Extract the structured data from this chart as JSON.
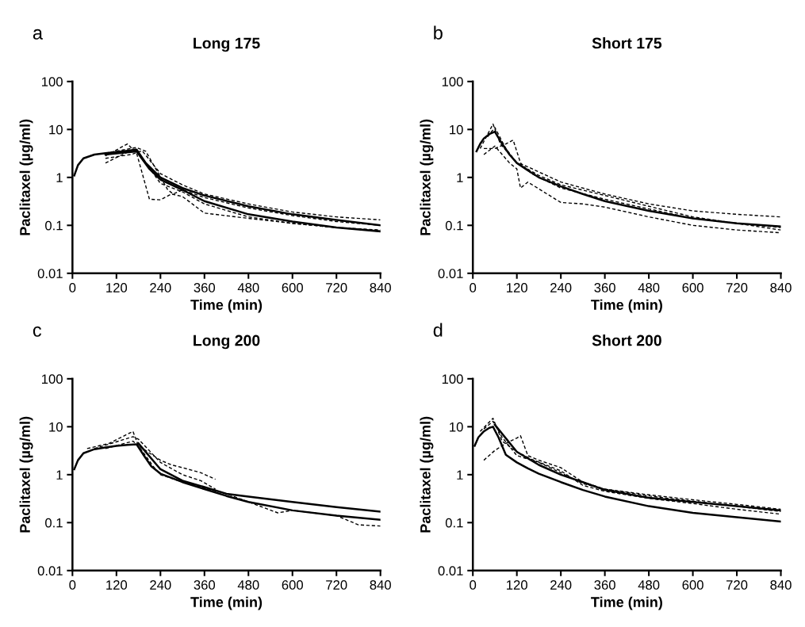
{
  "chart_data": [
    {
      "type": "line",
      "title": "Long 175",
      "xlabel": "Time (min)",
      "ylabel": "Paclitaxel (µg/ml)",
      "annotations": [
        "a"
      ],
      "log": "y",
      "xlim": [
        0,
        840
      ],
      "ylim": [
        0.01,
        100
      ],
      "xticks": [
        0,
        120,
        240,
        360,
        480,
        600,
        720,
        840
      ],
      "yticks": [
        0.01,
        0.1,
        1,
        10,
        100
      ],
      "series": [
        {
          "color": "#000000",
          "line_style": "solid",
          "x": [
            5,
            15,
            30,
            60,
            90,
            120,
            150,
            175,
            200,
            240,
            300,
            360,
            480,
            600,
            720,
            840
          ],
          "values": [
            1.1,
            1.8,
            2.5,
            3.0,
            3.2,
            3.4,
            3.6,
            3.8,
            2.0,
            1.0,
            0.6,
            0.42,
            0.25,
            0.17,
            0.13,
            0.1
          ]
        },
        {
          "color": "#000000",
          "line_style": "solid",
          "x": [
            90,
            175,
            210,
            240,
            300,
            360,
            480,
            600,
            720,
            840
          ],
          "values": [
            3.0,
            3.5,
            1.5,
            0.9,
            0.55,
            0.32,
            0.17,
            0.12,
            0.09,
            0.075
          ]
        },
        {
          "color": "#000000",
          "line_style": "dashed",
          "x": [
            90,
            150,
            175,
            210,
            240,
            270,
            300,
            360,
            480,
            600,
            720,
            840
          ],
          "values": [
            2.8,
            5.0,
            3.2,
            0.35,
            0.34,
            0.45,
            0.4,
            0.18,
            0.14,
            0.11,
            0.09,
            0.075
          ]
        },
        {
          "color": "#000000",
          "line_style": "dashed",
          "x": [
            90,
            170,
            200,
            240,
            300,
            360,
            480,
            600,
            720,
            840
          ],
          "values": [
            2.0,
            4.0,
            2.0,
            0.75,
            0.5,
            0.28,
            0.15,
            0.11,
            0.09,
            0.08
          ]
        },
        {
          "color": "#000000",
          "line_style": "dashed",
          "x": [
            90,
            160,
            190,
            240,
            300,
            360,
            480,
            600,
            720,
            840
          ],
          "values": [
            2.5,
            3.0,
            3.6,
            1.2,
            0.7,
            0.45,
            0.28,
            0.19,
            0.15,
            0.13
          ]
        },
        {
          "color": "#000000",
          "line_style": "dashed",
          "x": [
            90,
            175,
            200,
            260,
            275,
            300,
            360,
            480,
            600,
            720,
            840
          ],
          "values": [
            3.2,
            4.2,
            3.5,
            0.55,
            0.45,
            0.55,
            0.38,
            0.23,
            0.16,
            0.12,
            0.1
          ]
        }
      ]
    },
    {
      "type": "line",
      "title": "Short 175",
      "xlabel": "Time (min)",
      "ylabel": "Paclitaxel (µg/ml)",
      "annotations": [
        "b"
      ],
      "log": "y",
      "xlim": [
        0,
        840
      ],
      "ylim": [
        0.01,
        100
      ],
      "xticks": [
        0,
        120,
        240,
        360,
        480,
        600,
        720,
        840
      ],
      "yticks": [
        0.01,
        0.1,
        1,
        10,
        100
      ],
      "series": [
        {
          "color": "#000000",
          "line_style": "solid",
          "x": [
            10,
            20,
            30,
            45,
            60,
            80,
            100,
            120,
            150,
            180,
            240,
            300,
            360,
            480,
            600,
            720,
            840
          ],
          "values": [
            3.5,
            5,
            6.5,
            8,
            9,
            5,
            3,
            2.0,
            1.4,
            1.0,
            0.65,
            0.45,
            0.32,
            0.2,
            0.14,
            0.11,
            0.095
          ]
        },
        {
          "color": "#000000",
          "line_style": "dashed",
          "x": [
            30,
            60,
            100,
            120,
            130,
            150,
            240,
            300,
            360,
            480,
            600,
            720,
            840
          ],
          "values": [
            3.0,
            4.5,
            2.0,
            1.5,
            0.6,
            0.8,
            0.3,
            0.28,
            0.24,
            0.15,
            0.1,
            0.08,
            0.07
          ]
        },
        {
          "color": "#000000",
          "line_style": "dashed",
          "x": [
            20,
            55,
            75,
            100,
            120,
            140,
            240,
            360,
            480,
            600,
            720,
            840
          ],
          "values": [
            4,
            13,
            5,
            3,
            2,
            1.8,
            0.8,
            0.45,
            0.28,
            0.2,
            0.17,
            0.15
          ]
        },
        {
          "color": "#000000",
          "line_style": "dashed",
          "x": [
            30,
            60,
            90,
            110,
            130,
            160,
            240,
            360,
            480,
            600,
            720,
            840
          ],
          "values": [
            4,
            4,
            5,
            6,
            2,
            1.2,
            0.6,
            0.35,
            0.22,
            0.14,
            0.11,
            0.09
          ]
        },
        {
          "color": "#000000",
          "line_style": "dashed",
          "x": [
            40,
            60,
            90,
            120,
            180,
            240,
            360,
            480,
            600,
            720,
            840
          ],
          "values": [
            7,
            11,
            4,
            2,
            1.1,
            0.7,
            0.42,
            0.25,
            0.15,
            0.11,
            0.08
          ]
        }
      ]
    },
    {
      "type": "line",
      "title": "Long 200",
      "xlabel": "Time (min)",
      "ylabel": "Paclitaxel (µg/ml)",
      "annotations": [
        "c"
      ],
      "log": "y",
      "xlim": [
        0,
        840
      ],
      "ylim": [
        0.01,
        100
      ],
      "xticks": [
        0,
        120,
        240,
        360,
        480,
        600,
        720,
        840
      ],
      "yticks": [
        0.01,
        0.1,
        1,
        10,
        100
      ],
      "series": [
        {
          "color": "#000000",
          "line_style": "solid",
          "x": [
            5,
            15,
            30,
            60,
            90,
            120,
            150,
            175,
            195,
            215,
            240,
            300,
            360,
            420,
            480,
            600,
            720,
            840
          ],
          "values": [
            1.3,
            2.0,
            2.8,
            3.4,
            3.7,
            4.0,
            4.2,
            4.3,
            2.5,
            1.5,
            1.05,
            0.7,
            0.5,
            0.36,
            0.27,
            0.18,
            0.14,
            0.115
          ]
        },
        {
          "color": "#000000",
          "line_style": "solid",
          "x": [
            180,
            240,
            300,
            360,
            420,
            480,
            600,
            720,
            840
          ],
          "values": [
            4.5,
            1.3,
            0.75,
            0.55,
            0.4,
            0.35,
            0.27,
            0.21,
            0.17
          ]
        },
        {
          "color": "#000000",
          "line_style": "dashed",
          "x": [
            40,
            100,
            165,
            180,
            240,
            270,
            300,
            350,
            390
          ],
          "values": [
            3.5,
            4.5,
            8.0,
            4.0,
            2.0,
            1.6,
            1.4,
            1.1,
            0.8
          ]
        },
        {
          "color": "#000000",
          "line_style": "dashed",
          "x": [
            60,
            165,
            180,
            240,
            300,
            350,
            390
          ],
          "values": [
            3.5,
            6.2,
            5.5,
            1.8,
            1.0,
            0.75,
            0.5
          ]
        },
        {
          "color": "#000000",
          "line_style": "dashed",
          "x": [
            90,
            165,
            180,
            220,
            240,
            300,
            420,
            480,
            560,
            600,
            720,
            780,
            840
          ],
          "values": [
            3.5,
            5,
            4,
            1.5,
            1.0,
            0.7,
            0.4,
            0.27,
            0.16,
            0.18,
            0.14,
            0.09,
            0.085
          ]
        }
      ]
    },
    {
      "type": "line",
      "title": "Short 200",
      "xlabel": "Time (min)",
      "ylabel": "Paclitaxel (µg/ml)",
      "annotations": [
        "d"
      ],
      "log": "y",
      "xlim": [
        0,
        840
      ],
      "ylim": [
        0.01,
        100
      ],
      "xticks": [
        0,
        120,
        240,
        360,
        480,
        600,
        720,
        840
      ],
      "yticks": [
        0.01,
        0.1,
        1,
        10,
        100
      ],
      "series": [
        {
          "color": "#000000",
          "line_style": "solid",
          "x": [
            5,
            15,
            30,
            45,
            55,
            70,
            90,
            120,
            150,
            180,
            240,
            300,
            360,
            480,
            600,
            720,
            840
          ],
          "values": [
            4,
            6,
            8,
            9.5,
            10,
            6,
            2.6,
            1.8,
            1.35,
            1.05,
            0.7,
            0.48,
            0.35,
            0.22,
            0.16,
            0.13,
            0.105
          ]
        },
        {
          "color": "#000000",
          "line_style": "solid",
          "x": [
            60,
            120,
            180,
            240,
            300,
            360,
            480,
            600,
            720,
            840
          ],
          "values": [
            11,
            3,
            1.6,
            1.0,
            0.7,
            0.48,
            0.33,
            0.27,
            0.22,
            0.18
          ]
        },
        {
          "color": "#000000",
          "line_style": "dashed",
          "x": [
            30,
            60,
            90,
            120,
            130,
            150,
            180,
            240,
            300,
            360,
            480,
            600,
            720,
            840
          ],
          "values": [
            2.0,
            3.2,
            4.5,
            5.8,
            6.5,
            2.5,
            2.0,
            1.4,
            0.7,
            0.5,
            0.38,
            0.3,
            0.24,
            0.19
          ]
        },
        {
          "color": "#000000",
          "line_style": "dashed",
          "x": [
            20,
            55,
            80,
            120,
            160,
            240,
            300,
            360,
            480,
            600,
            720,
            840
          ],
          "values": [
            8,
            15,
            5,
            3,
            2.1,
            1.2,
            0.6,
            0.45,
            0.32,
            0.25,
            0.19,
            0.15
          ]
        },
        {
          "color": "#000000",
          "line_style": "dashed",
          "x": [
            30,
            55,
            80,
            120,
            180,
            240,
            300,
            360,
            480,
            600,
            720,
            840
          ],
          "values": [
            9,
            13,
            6,
            2.5,
            1.8,
            1.1,
            0.65,
            0.5,
            0.36,
            0.28,
            0.22,
            0.17
          ]
        }
      ]
    }
  ]
}
